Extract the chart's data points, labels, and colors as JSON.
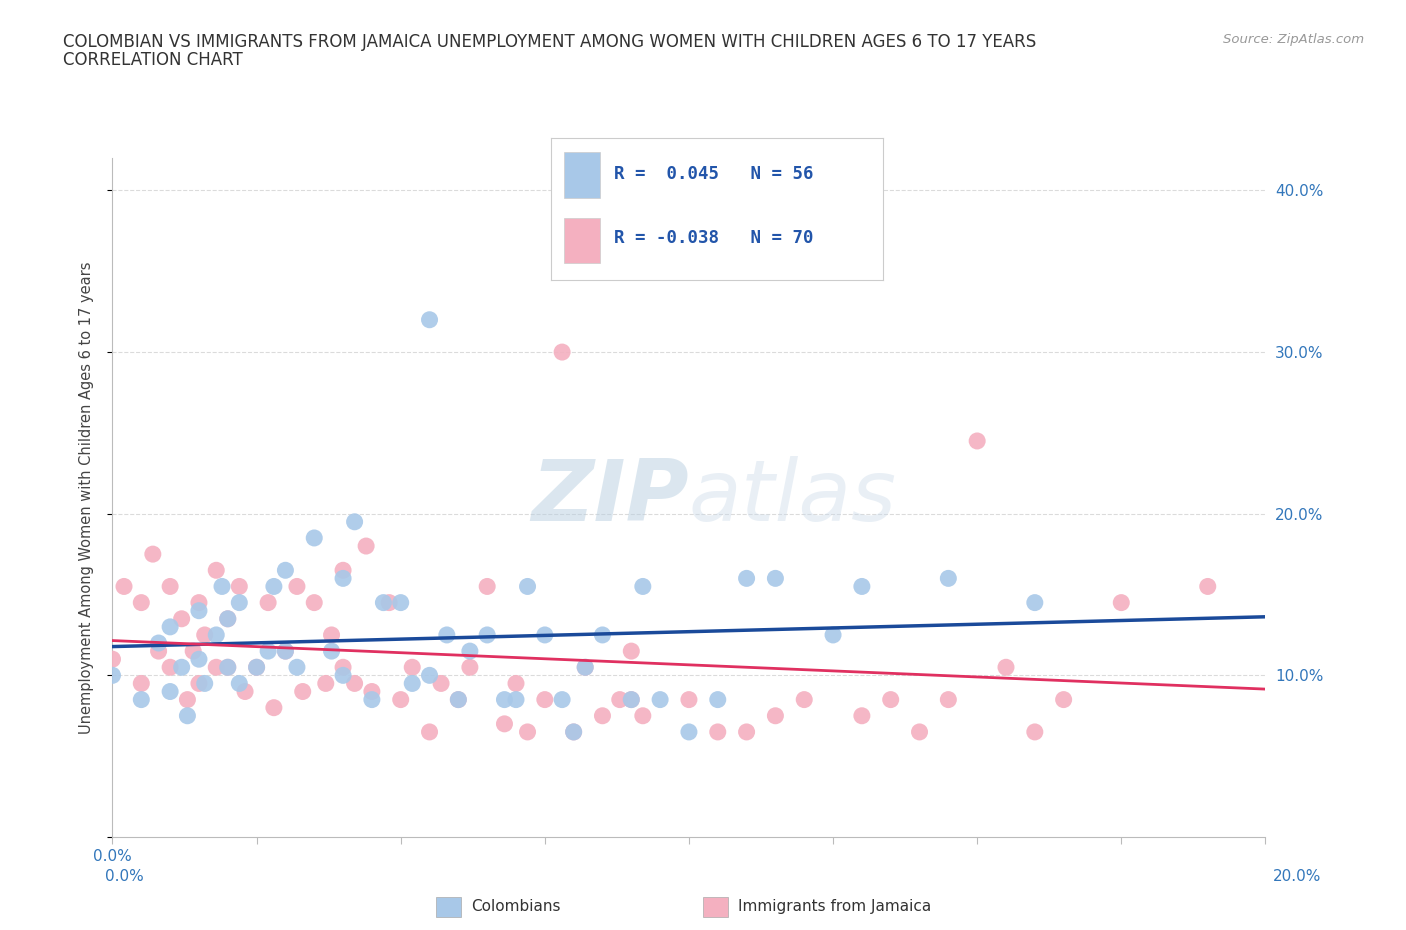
{
  "title_line1": "COLOMBIAN VS IMMIGRANTS FROM JAMAICA UNEMPLOYMENT AMONG WOMEN WITH CHILDREN AGES 6 TO 17 YEARS",
  "title_line2": "CORRELATION CHART",
  "source": "Source: ZipAtlas.com",
  "ylabel": "Unemployment Among Women with Children Ages 6 to 17 years",
  "xlim": [
    0.0,
    0.2
  ],
  "ylim": [
    0.0,
    0.42
  ],
  "ytick_right_values": [
    0.0,
    0.1,
    0.2,
    0.3,
    0.4
  ],
  "grid_color": "#cccccc",
  "background_color": "#ffffff",
  "colombian_color": "#a8c8e8",
  "jamaican_color": "#f4b0c0",
  "colombian_line_color": "#1a4a9a",
  "jamaican_line_color": "#e03060",
  "watermark_text": "ZIPatlas",
  "colombian_x": [
    0.0,
    0.005,
    0.008,
    0.01,
    0.01,
    0.012,
    0.013,
    0.015,
    0.015,
    0.016,
    0.018,
    0.019,
    0.02,
    0.02,
    0.022,
    0.022,
    0.025,
    0.027,
    0.028,
    0.03,
    0.03,
    0.032,
    0.035,
    0.038,
    0.04,
    0.04,
    0.042,
    0.045,
    0.047,
    0.05,
    0.052,
    0.055,
    0.055,
    0.058,
    0.06,
    0.062,
    0.065,
    0.068,
    0.07,
    0.072,
    0.075,
    0.078,
    0.08,
    0.082,
    0.085,
    0.09,
    0.092,
    0.095,
    0.1,
    0.105,
    0.11,
    0.115,
    0.125,
    0.13,
    0.145,
    0.16
  ],
  "colombian_y": [
    0.1,
    0.085,
    0.12,
    0.09,
    0.13,
    0.105,
    0.075,
    0.11,
    0.14,
    0.095,
    0.125,
    0.155,
    0.105,
    0.135,
    0.145,
    0.095,
    0.105,
    0.115,
    0.155,
    0.115,
    0.165,
    0.105,
    0.185,
    0.115,
    0.1,
    0.16,
    0.195,
    0.085,
    0.145,
    0.145,
    0.095,
    0.1,
    0.32,
    0.125,
    0.085,
    0.115,
    0.125,
    0.085,
    0.085,
    0.155,
    0.125,
    0.085,
    0.065,
    0.105,
    0.125,
    0.085,
    0.155,
    0.085,
    0.065,
    0.085,
    0.16,
    0.16,
    0.125,
    0.155,
    0.16,
    0.145
  ],
  "jamaican_x": [
    0.0,
    0.002,
    0.005,
    0.005,
    0.007,
    0.008,
    0.01,
    0.01,
    0.012,
    0.013,
    0.014,
    0.015,
    0.015,
    0.016,
    0.018,
    0.018,
    0.02,
    0.02,
    0.022,
    0.023,
    0.025,
    0.027,
    0.028,
    0.03,
    0.032,
    0.033,
    0.035,
    0.037,
    0.038,
    0.04,
    0.04,
    0.042,
    0.044,
    0.045,
    0.048,
    0.05,
    0.052,
    0.055,
    0.057,
    0.06,
    0.062,
    0.065,
    0.068,
    0.07,
    0.072,
    0.075,
    0.078,
    0.08,
    0.082,
    0.085,
    0.088,
    0.09,
    0.09,
    0.092,
    0.1,
    0.105,
    0.11,
    0.115,
    0.12,
    0.13,
    0.135,
    0.14,
    0.145,
    0.15,
    0.155,
    0.16,
    0.165,
    0.175,
    0.19
  ],
  "jamaican_y": [
    0.11,
    0.155,
    0.145,
    0.095,
    0.175,
    0.115,
    0.155,
    0.105,
    0.135,
    0.085,
    0.115,
    0.145,
    0.095,
    0.125,
    0.105,
    0.165,
    0.105,
    0.135,
    0.155,
    0.09,
    0.105,
    0.145,
    0.08,
    0.115,
    0.155,
    0.09,
    0.145,
    0.095,
    0.125,
    0.105,
    0.165,
    0.095,
    0.18,
    0.09,
    0.145,
    0.085,
    0.105,
    0.065,
    0.095,
    0.085,
    0.105,
    0.155,
    0.07,
    0.095,
    0.065,
    0.085,
    0.3,
    0.065,
    0.105,
    0.075,
    0.085,
    0.085,
    0.115,
    0.075,
    0.085,
    0.065,
    0.065,
    0.075,
    0.085,
    0.075,
    0.085,
    0.065,
    0.085,
    0.245,
    0.105,
    0.065,
    0.085,
    0.145,
    0.155
  ]
}
